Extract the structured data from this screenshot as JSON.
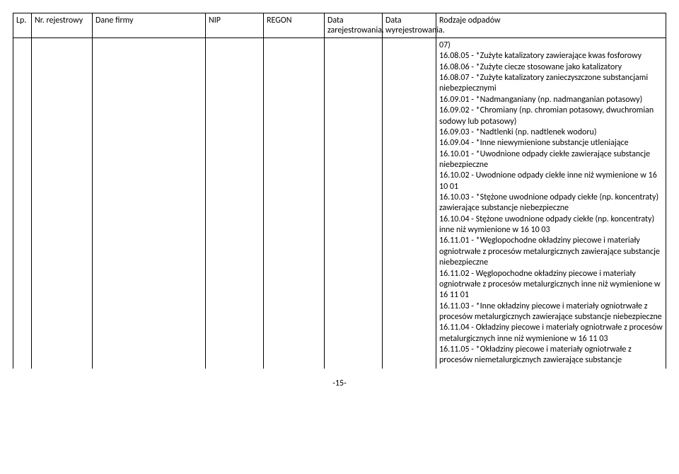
{
  "headers": {
    "lp": "Lp.",
    "nr": "Nr. rejestrowy",
    "firm": "Dane firmy",
    "nip": "NIP",
    "regon": "REGON",
    "d1": "Data zarejestrowania.",
    "d2": "Data wyrejestrowania.",
    "rodz": "Rodzaje odpadów"
  },
  "waste_lines": [
    "07)",
    "16.08.05 - *Zużyte katalizatory zawierające kwas fosforowy",
    "16.08.06 - *Zużyte ciecze stosowane jako katalizatory",
    "16.08.07 - *Zużyte katalizatory zanieczyszczone substancjami niebezpiecznymi",
    "16.09.01 - *Nadmanganiany (np. nadmanganian potasowy)",
    "16.09.02 - *Chromiany (np. chromian potasowy, dwuchromian sodowy lub potasowy)",
    "16.09.03 - *Nadtlenki (np. nadtlenek wodoru)",
    "16.09.04 - *Inne niewymienione substancje utleniające",
    "16.10.01 - *Uwodnione odpady ciekłe zawierające substancje niebezpieczne",
    "16.10.02 - Uwodnione odpady ciekłe inne niż wymienione w 16 10 01",
    "16.10.03 - *Stężone uwodnione odpady ciekłe (np. koncentraty) zawierające substancje niebezpieczne",
    "16.10.04 - Stężone uwodnione odpady ciekłe (np. koncentraty) inne niż wymienione w 16 10 03",
    "16.11.01 - *Węglopochodne okładziny piecowe i materiały ogniotrwałe z procesów metalurgicznych zawierające substancje niebezpieczne",
    "16.11.02 - Węglopochodne okładziny piecowe i materiały ogniotrwałe z procesów metalurgicznych inne niż wymienione w 16 11 01",
    "16.11.03 - *Inne okładziny piecowe i materiały ogniotrwałe z procesów metalurgicznych zawierające substancje niebezpieczne",
    "16.11.04 - Okładziny piecowe i materiały ogniotrwałe z procesów metalurgicznych inne niż wymienione w 16 11 03",
    "16.11.05 - *Okładziny piecowe i materiały ogniotrwałe z procesów niemetalurgicznych zawierające substancje"
  ],
  "page_number": "-15-"
}
